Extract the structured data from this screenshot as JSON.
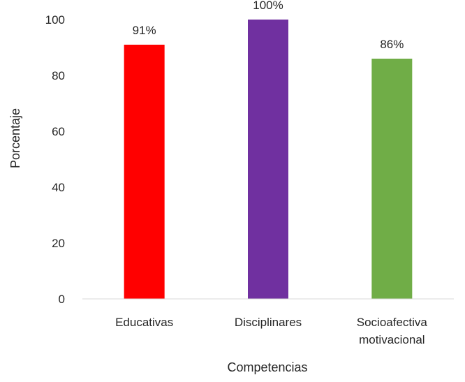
{
  "chart_data": {
    "type": "bar",
    "title": "",
    "xlabel": "Competencias",
    "ylabel": "Porcentaje",
    "ylim": [
      0,
      100
    ],
    "yticks": [
      0,
      20,
      40,
      60,
      80,
      100
    ],
    "grid": false,
    "legend": "none",
    "categories": [
      [
        "Educativas"
      ],
      [
        "Disciplinares"
      ],
      [
        "Socioafectiva",
        "motivacional"
      ]
    ],
    "values": [
      91,
      100,
      86
    ],
    "data_labels": [
      "91%",
      "100%",
      "86%"
    ],
    "colors": [
      "#ff0000",
      "#7030a0",
      "#70ad47"
    ]
  }
}
